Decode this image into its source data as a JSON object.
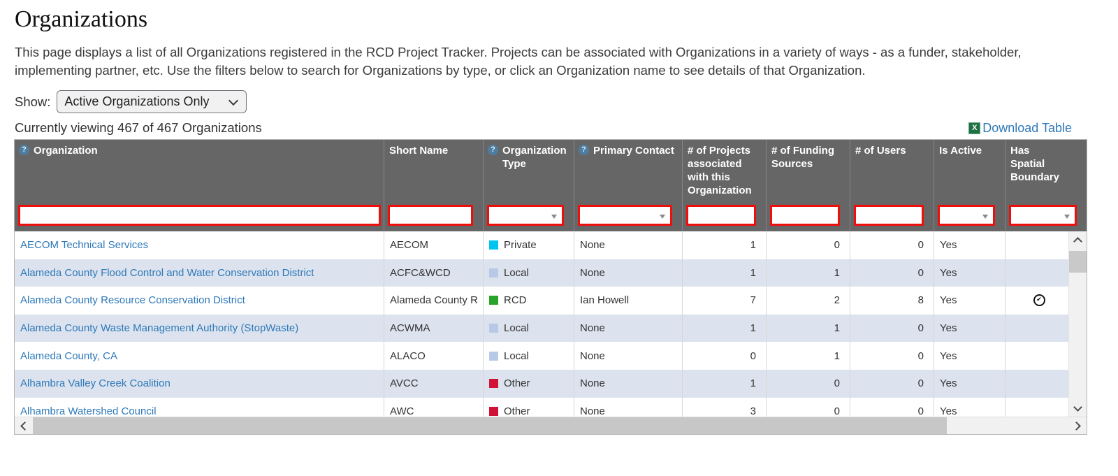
{
  "page": {
    "title": "Organizations",
    "description": "This page displays a list of all Organizations registered in the RCD Project Tracker. Projects can be associated with Organizations in a variety of ways - as a funder, stakeholder, implementing partner, etc. Use the filters below to search for Organizations by type, or click an Organization name to see details of that Organization.",
    "show_label": "Show:",
    "show_value": "Active Organizations Only",
    "status": "Currently viewing 467 of 467 Organizations",
    "download_label": "Download Table"
  },
  "icons": {
    "help": "?",
    "check": "✔",
    "excel": "X"
  },
  "colors": {
    "link": "#2e79b9",
    "header_bg": "#676667",
    "filter_border": "#ee0f0c",
    "row_alt": "#dce3ee"
  },
  "table": {
    "columns": [
      {
        "label": "Organization",
        "help": true,
        "filter": "text"
      },
      {
        "label": "Short Name",
        "help": false,
        "filter": "text"
      },
      {
        "label": "Organization Type",
        "help": true,
        "filter": "select"
      },
      {
        "label": "Primary Contact",
        "help": true,
        "filter": "select"
      },
      {
        "label": "# of Projects associated with this Organization",
        "help": false,
        "filter": "text"
      },
      {
        "label": "# of Funding Sources",
        "help": false,
        "filter": "text"
      },
      {
        "label": "# of Users",
        "help": false,
        "filter": "text"
      },
      {
        "label": "Is Active",
        "help": false,
        "filter": "select"
      },
      {
        "label": "Has Spatial Boundary",
        "help": false,
        "filter": "select"
      }
    ],
    "type_colors": {
      "Private": "#00c6ef",
      "Local": "#b7c9e7",
      "RCD": "#2aa32a",
      "Other": "#d01236"
    },
    "rows": [
      {
        "organization": "AECOM Technical Services",
        "short_name": "AECOM",
        "type": "Private",
        "primary_contact": "None",
        "projects": "1",
        "funding_sources": "0",
        "users": "0",
        "is_active": "Yes",
        "has_spatial_boundary": false
      },
      {
        "organization": "Alameda County Flood Control and Water Conservation District",
        "short_name": "ACFC&WCD",
        "type": "Local",
        "primary_contact": "None",
        "projects": "1",
        "funding_sources": "1",
        "users": "0",
        "is_active": "Yes",
        "has_spatial_boundary": false
      },
      {
        "organization": "Alameda County Resource Conservation District",
        "short_name": "Alameda County R",
        "type": "RCD",
        "primary_contact": "Ian Howell",
        "projects": "7",
        "funding_sources": "2",
        "users": "8",
        "is_active": "Yes",
        "has_spatial_boundary": true
      },
      {
        "organization": "Alameda County Waste Management Authority (StopWaste)",
        "short_name": "ACWMA",
        "type": "Local",
        "primary_contact": "None",
        "projects": "1",
        "funding_sources": "1",
        "users": "0",
        "is_active": "Yes",
        "has_spatial_boundary": false
      },
      {
        "organization": "Alameda County, CA",
        "short_name": "ALACO",
        "type": "Local",
        "primary_contact": "None",
        "projects": "0",
        "funding_sources": "1",
        "users": "0",
        "is_active": "Yes",
        "has_spatial_boundary": false
      },
      {
        "organization": "Alhambra Valley Creek Coalition",
        "short_name": "AVCC",
        "type": "Other",
        "primary_contact": "None",
        "projects": "1",
        "funding_sources": "0",
        "users": "0",
        "is_active": "Yes",
        "has_spatial_boundary": false
      },
      {
        "organization": "Alhambra Watershed Council",
        "short_name": "AWC",
        "type": "Other",
        "primary_contact": "None",
        "projects": "3",
        "funding_sources": "0",
        "users": "0",
        "is_active": "Yes",
        "has_spatial_boundary": false
      }
    ]
  }
}
